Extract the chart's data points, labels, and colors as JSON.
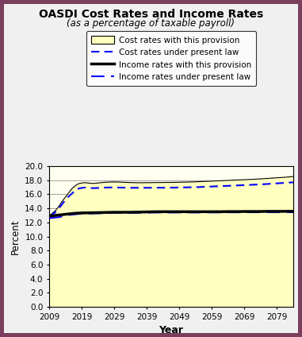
{
  "title": "OASDI Cost Rates and Income Rates",
  "subtitle": "(as a percentage of taxable payroll)",
  "xlabel": "Year",
  "ylabel": "Percent",
  "xlim": [
    2009,
    2084
  ],
  "ylim": [
    0.0,
    20.0
  ],
  "yticks": [
    0.0,
    2.0,
    4.0,
    6.0,
    8.0,
    10.0,
    12.0,
    14.0,
    16.0,
    18.0,
    20.0
  ],
  "xticks": [
    2009,
    2019,
    2029,
    2039,
    2049,
    2059,
    2069,
    2079
  ],
  "plot_bg_color": "#FFFFF0",
  "fill_color": "#FFFFC0",
  "outer_bg": "#7B3F5E",
  "inner_bg": "#F0F0F0",
  "years": [
    2009,
    2010,
    2011,
    2012,
    2013,
    2014,
    2015,
    2016,
    2017,
    2018,
    2019,
    2020,
    2021,
    2022,
    2023,
    2024,
    2025,
    2026,
    2027,
    2028,
    2029,
    2030,
    2031,
    2032,
    2033,
    2034,
    2035,
    2036,
    2037,
    2038,
    2039,
    2040,
    2041,
    2042,
    2043,
    2044,
    2045,
    2046,
    2047,
    2048,
    2049,
    2050,
    2051,
    2052,
    2053,
    2054,
    2055,
    2056,
    2057,
    2058,
    2059,
    2060,
    2061,
    2062,
    2063,
    2064,
    2065,
    2066,
    2067,
    2068,
    2069,
    2070,
    2071,
    2072,
    2073,
    2074,
    2075,
    2076,
    2077,
    2078,
    2079,
    2080,
    2081,
    2082,
    2083,
    2084
  ],
  "cost_provision": [
    12.95,
    13.3,
    13.7,
    14.3,
    15.0,
    15.6,
    16.2,
    16.8,
    17.2,
    17.5,
    17.6,
    17.65,
    17.6,
    17.55,
    17.55,
    17.6,
    17.65,
    17.7,
    17.72,
    17.74,
    17.75,
    17.74,
    17.72,
    17.7,
    17.68,
    17.66,
    17.65,
    17.64,
    17.64,
    17.64,
    17.65,
    17.65,
    17.66,
    17.66,
    17.67,
    17.67,
    17.68,
    17.68,
    17.69,
    17.7,
    17.71,
    17.72,
    17.73,
    17.74,
    17.75,
    17.77,
    17.79,
    17.81,
    17.83,
    17.85,
    17.87,
    17.89,
    17.91,
    17.93,
    17.95,
    17.97,
    17.99,
    18.01,
    18.03,
    18.05,
    18.07,
    18.09,
    18.11,
    18.13,
    18.16,
    18.19,
    18.22,
    18.25,
    18.28,
    18.31,
    18.34,
    18.37,
    18.4,
    18.44,
    18.48,
    18.52
  ],
  "cost_present_law": [
    12.95,
    13.1,
    13.5,
    14.0,
    14.6,
    15.2,
    15.7,
    16.1,
    16.5,
    16.8,
    16.9,
    16.95,
    16.9,
    16.88,
    16.87,
    16.9,
    16.92,
    16.94,
    16.96,
    16.97,
    16.97,
    16.96,
    16.95,
    16.94,
    16.93,
    16.92,
    16.92,
    16.92,
    16.92,
    16.92,
    16.92,
    16.92,
    16.93,
    16.93,
    16.93,
    16.93,
    16.93,
    16.94,
    16.94,
    16.95,
    16.96,
    16.97,
    16.98,
    16.99,
    17.0,
    17.01,
    17.02,
    17.04,
    17.06,
    17.08,
    17.1,
    17.12,
    17.14,
    17.16,
    17.18,
    17.2,
    17.22,
    17.24,
    17.26,
    17.28,
    17.3,
    17.32,
    17.34,
    17.36,
    17.38,
    17.4,
    17.43,
    17.46,
    17.49,
    17.52,
    17.55,
    17.58,
    17.61,
    17.64,
    17.67,
    17.7
  ],
  "income_provision": [
    12.9,
    12.95,
    13.0,
    13.05,
    13.1,
    13.15,
    13.2,
    13.25,
    13.3,
    13.32,
    13.34,
    13.35,
    13.36,
    13.37,
    13.38,
    13.39,
    13.4,
    13.41,
    13.42,
    13.43,
    13.44,
    13.44,
    13.44,
    13.44,
    13.44,
    13.44,
    13.45,
    13.46,
    13.47,
    13.48,
    13.49,
    13.5,
    13.51,
    13.52,
    13.52,
    13.52,
    13.52,
    13.52,
    13.52,
    13.52,
    13.52,
    13.52,
    13.52,
    13.52,
    13.52,
    13.52,
    13.52,
    13.52,
    13.52,
    13.52,
    13.52,
    13.52,
    13.52,
    13.52,
    13.53,
    13.54,
    13.54,
    13.54,
    13.54,
    13.54,
    13.55,
    13.55,
    13.55,
    13.55,
    13.55,
    13.55,
    13.56,
    13.57,
    13.57,
    13.57,
    13.57,
    13.57,
    13.57,
    13.58,
    13.58,
    13.58
  ],
  "income_present_law": [
    12.6,
    12.65,
    12.7,
    12.75,
    12.85,
    12.95,
    13.05,
    13.1,
    13.15,
    13.2,
    13.22,
    13.25,
    13.26,
    13.27,
    13.28,
    13.29,
    13.3,
    13.31,
    13.32,
    13.33,
    13.34,
    13.34,
    13.34,
    13.34,
    13.34,
    13.35,
    13.35,
    13.36,
    13.37,
    13.38,
    13.39,
    13.4,
    13.41,
    13.41,
    13.41,
    13.41,
    13.41,
    13.41,
    13.41,
    13.41,
    13.41,
    13.41,
    13.41,
    13.41,
    13.41,
    13.41,
    13.41,
    13.42,
    13.42,
    13.42,
    13.42,
    13.42,
    13.42,
    13.42,
    13.43,
    13.43,
    13.43,
    13.43,
    13.43,
    13.43,
    13.44,
    13.44,
    13.44,
    13.44,
    13.44,
    13.44,
    13.44,
    13.44,
    13.44,
    13.44,
    13.44,
    13.44,
    13.44,
    13.44,
    13.44,
    13.45
  ],
  "legend_labels": [
    "Cost rates with this provision",
    "Cost rates under present law",
    "Income rates with this provision",
    "Income rates under present law"
  ]
}
